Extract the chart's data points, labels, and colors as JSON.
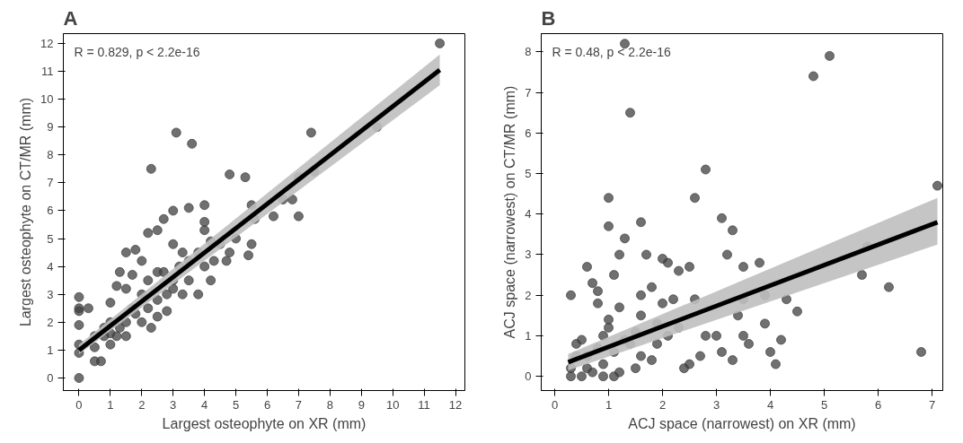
{
  "chart_data": [
    {
      "type": "scatter",
      "title": "A",
      "xlabel": "Largest osteophyte on XR (mm)",
      "ylabel": "Largest osteophyte on CT/MR (mm)",
      "annotations": [
        "R = 0.829, p < 2.2e-16"
      ],
      "xlim": [
        -0.5,
        12.3
      ],
      "ylim": [
        -0.45,
        12.35
      ],
      "xticks": [
        0,
        1,
        2,
        3,
        4,
        5,
        6,
        7,
        8,
        9,
        10,
        11,
        12
      ],
      "yticks": [
        0,
        1,
        2,
        3,
        4,
        5,
        6,
        7,
        8,
        9,
        10,
        11,
        12
      ],
      "grid": false,
      "series": [
        {
          "type": "scatter",
          "marker": "circle",
          "color": "#404040",
          "x": [
            0,
            0,
            0,
            0,
            0,
            0,
            0,
            0.3,
            0.5,
            0.5,
            0.7,
            2.3,
            3.1,
            3.6,
            4.8,
            5.3,
            7.4,
            9.5,
            11.5,
            7,
            7,
            7.5,
            6.5,
            6.8,
            6.2,
            5.5,
            5.6,
            5.5,
            5.4,
            5,
            4.8,
            4,
            3.5,
            3,
            2.7,
            2.5,
            2.2,
            1.5,
            1.8,
            2,
            3,
            4,
            4,
            4.5,
            4.2,
            3.8,
            4.7,
            1,
            1,
            1.2,
            1.3,
            1.5,
            1.5,
            1.7,
            2,
            2,
            2.2,
            2.5,
            2.5,
            2.8,
            3,
            3,
            3.2,
            3.5,
            3.5,
            3.8,
            4,
            4.3,
            2.2,
            1.8,
            1.2,
            0.8,
            0.8,
            1,
            1.3,
            1.5,
            2.3,
            2.5,
            2.8,
            3.3,
            0.5,
            1,
            1.7,
            2.7,
            3.3,
            4.2
          ],
          "values": [
            0,
            2.9,
            2.5,
            2.4,
            1.9,
            1.2,
            0.9,
            2.5,
            1.1,
            0.6,
            0.6,
            7.5,
            8.8,
            8.4,
            7.3,
            7.2,
            8.8,
            9.0,
            12,
            5.8,
            7.2,
            7.4,
            6.4,
            6.4,
            5.8,
            6.2,
            5.7,
            4.8,
            4.4,
            5,
            4.5,
            6.2,
            6.1,
            6,
            5.7,
            5.3,
            5.2,
            4.5,
            4.6,
            4.2,
            4.8,
            5.6,
            5.3,
            4.8,
            4.9,
            3.0,
            4.2,
            2.7,
            1.6,
            3.3,
            3.8,
            2.0,
            3.2,
            2.5,
            2.0,
            3.0,
            3.5,
            2.8,
            3.8,
            2.4,
            3.2,
            3.5,
            4,
            3.5,
            4.2,
            4.5,
            4,
            4.2,
            2.5,
            2.3,
            1.5,
            1.5,
            1.8,
            1.2,
            1.8,
            1.5,
            1.8,
            2.2,
            3,
            3,
            1.5,
            2,
            3.7,
            3.8,
            4.5,
            3.5
          ]
        },
        {
          "type": "line",
          "color": "#000000",
          "x": [
            0,
            11.5
          ],
          "values": [
            1.0,
            11.05
          ],
          "lower": [
            0.85,
            10.5
          ],
          "upper": [
            1.2,
            11.6
          ]
        }
      ]
    },
    {
      "type": "scatter",
      "title": "B",
      "xlabel": "ACJ space (narrowest) on XR (mm)",
      "ylabel": "ACJ space (narrowest) on CT/MR (mm)",
      "annotations": [
        "R = 0.48, p < 2.2e-16"
      ],
      "xlim": [
        -0.25,
        7.2
      ],
      "ylim": [
        -0.35,
        8.45
      ],
      "xticks": [
        0,
        1,
        2,
        3,
        4,
        5,
        6,
        7
      ],
      "yticks": [
        0,
        1,
        2,
        3,
        4,
        5,
        6,
        7,
        8
      ],
      "grid": false,
      "series": [
        {
          "type": "scatter",
          "marker": "circle",
          "color": "#404040",
          "x": [
            1.3,
            1.4,
            4.8,
            5.1,
            2.8,
            2.6,
            3.1,
            1.0,
            1.0,
            1.6,
            1.3,
            1.2,
            1.7,
            3.3,
            3.5,
            3.2,
            3.8,
            0.3,
            0.6,
            0.7,
            0.8,
            0.8,
            1.1,
            1.6,
            1.8,
            2.0,
            2.1,
            2.3,
            2.5,
            2.0,
            2.2,
            2.6,
            3.0,
            2.8,
            2.5,
            2.4,
            3.4,
            3.5,
            3.9,
            3.9,
            4.3,
            4.5,
            4.2,
            4.0,
            4.1,
            3.6,
            3.3,
            3.1,
            5.7,
            5.8,
            6.2,
            6.8,
            7.1,
            1.0,
            1.2,
            1.0,
            0.9,
            0.5,
            0.4,
            0.3,
            0.3,
            0.5,
            0.7,
            0.9,
            1.1,
            1.3,
            1.5,
            1.6,
            1.5,
            1.8,
            1.9,
            2.1,
            1.4,
            0.6,
            0.8,
            0.6,
            0.4,
            1.2,
            1.6,
            1.9,
            2.3,
            0.9,
            1.1,
            2.7,
            3.5
          ],
          "values": [
            8.2,
            6.5,
            7.4,
            7.9,
            5.1,
            4.4,
            3.9,
            4.4,
            3.7,
            3.8,
            3.4,
            3.0,
            3.0,
            3.6,
            2.7,
            3.0,
            2.8,
            2.0,
            2.7,
            2.3,
            2.1,
            1.8,
            2.5,
            2.0,
            2.2,
            2.9,
            2.8,
            2.6,
            2.7,
            1.8,
            1.9,
            1.9,
            1.0,
            1.0,
            0.3,
            0.2,
            1.5,
            1.9,
            2.0,
            1.3,
            1.9,
            1.6,
            0.9,
            0.6,
            0.3,
            0.8,
            0.4,
            0.6,
            2.5,
            3.2,
            2.2,
            0.6,
            4.7,
            1.4,
            1.7,
            1.2,
            1.0,
            0.9,
            0.5,
            0.2,
            0,
            0,
            0.1,
            0.3,
            0.6,
            0.9,
            1.1,
            0.5,
            0.2,
            0.4,
            0.8,
            1.0,
            0.8,
            0.5,
            0.7,
            0.2,
            0.8,
            0.1,
            1.5,
            1.3,
            1.2,
            0,
            0,
            0.5,
            1.0
          ]
        },
        {
          "type": "line",
          "color": "#000000",
          "x": [
            0.25,
            7.1
          ],
          "values": [
            0.35,
            3.8
          ],
          "lower": [
            0.15,
            3.25
          ],
          "upper": [
            0.55,
            4.4
          ]
        }
      ]
    }
  ]
}
